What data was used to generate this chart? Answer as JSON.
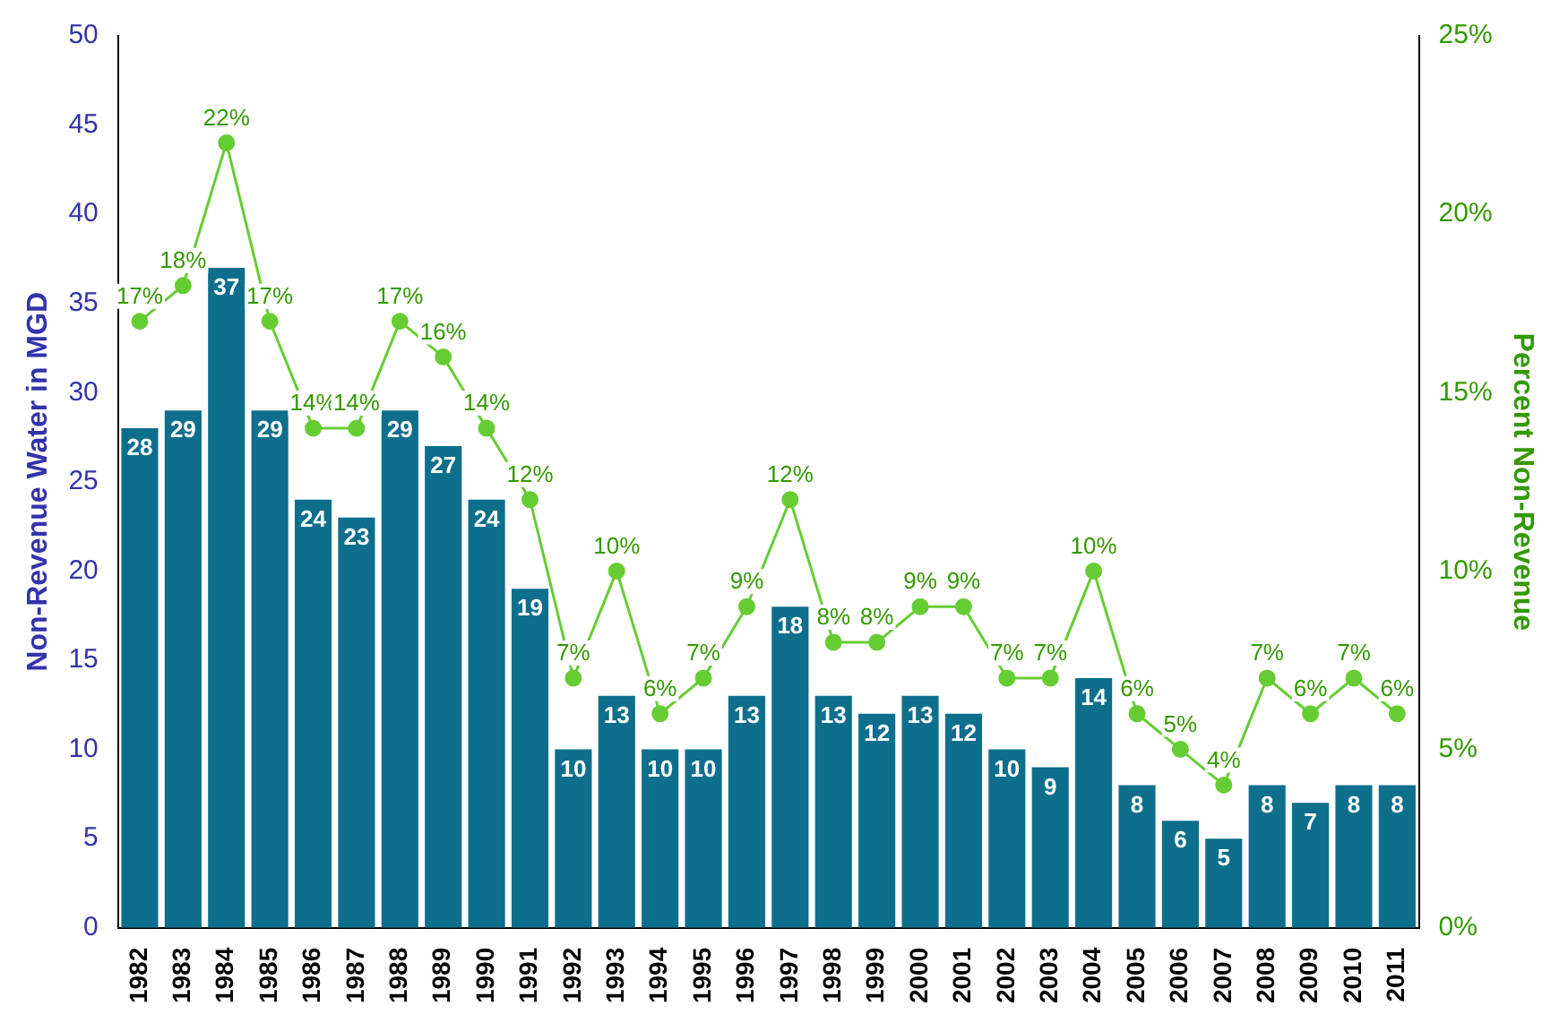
{
  "chart_data": {
    "type": "bar",
    "ylabel": "Non-Revenue Water in MGD",
    "y2label": "Percent Non-Revenue",
    "categories": [
      "1982",
      "1983",
      "1984",
      "1985",
      "1986",
      "1987",
      "1988",
      "1989",
      "1990",
      "1991",
      "1992",
      "1993",
      "1994",
      "1995",
      "1996",
      "1997",
      "1998",
      "1999",
      "2000",
      "2001",
      "2002",
      "2003",
      "2004",
      "2005",
      "2006",
      "2007",
      "2008",
      "2009",
      "2010",
      "2011"
    ],
    "series": [
      {
        "color": "#0e6f8c",
        "values": [
          28,
          29,
          37,
          29,
          24,
          23,
          29,
          27,
          24,
          19,
          10,
          13,
          10,
          10,
          13,
          18,
          13,
          12,
          13,
          12,
          10,
          9,
          14,
          8,
          6,
          5,
          8,
          7,
          8,
          8
        ],
        "value_labels": [
          "28",
          "29",
          "37",
          "29",
          "24",
          "23",
          "29",
          "27",
          "24",
          "19",
          "10",
          "13",
          "10",
          "10",
          "13",
          "18",
          "13",
          "12",
          "13",
          "12",
          "10",
          "9",
          "14",
          "8",
          "6",
          "5",
          "8",
          "7",
          "8",
          "8"
        ]
      },
      {
        "type": "line",
        "axis": "y2",
        "color": "#66cc33",
        "marker": "circle",
        "values": [
          17,
          18,
          22,
          17,
          14,
          14,
          17,
          16,
          14,
          12,
          7,
          10,
          6,
          7,
          9,
          12,
          8,
          8,
          9,
          9,
          7,
          7,
          10,
          6,
          5,
          4,
          7,
          6,
          7,
          6
        ],
        "value_labels": [
          "17%",
          "18%",
          "22%",
          "17%",
          "14%",
          "14%",
          "17%",
          "16%",
          "14%",
          "12%",
          "7%",
          "10%",
          "6%",
          "7%",
          "9%",
          "12%",
          "8%",
          "8%",
          "9%",
          "9%",
          "7%",
          "7%",
          "10%",
          "6%",
          "5%",
          "4%",
          "7%",
          "6%",
          "7%",
          "6%"
        ]
      }
    ],
    "ylim": [
      0,
      50
    ],
    "yticks": [
      0,
      5,
      10,
      15,
      20,
      25,
      30,
      35,
      40,
      45,
      50
    ],
    "y2lim": [
      0,
      25
    ],
    "y2ticks": [
      {
        "value": 0,
        "label": "0%"
      },
      {
        "value": 5,
        "label": "5%"
      },
      {
        "value": 10,
        "label": "10%"
      },
      {
        "value": 15,
        "label": "15%"
      },
      {
        "value": 20,
        "label": "20%"
      },
      {
        "value": 25,
        "label": "25%"
      }
    ],
    "grid": false,
    "legend": false
  }
}
